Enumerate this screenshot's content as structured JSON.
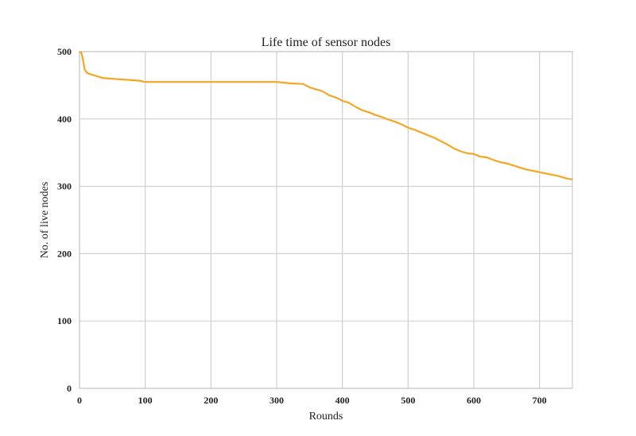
{
  "chart_data": {
    "type": "line",
    "title": "Life time of sensor nodes",
    "xlabel": "Rounds",
    "ylabel": "No. of live nodes",
    "xlim": [
      0,
      750
    ],
    "ylim": [
      0,
      500
    ],
    "xticks": [
      0,
      100,
      200,
      300,
      400,
      500,
      600,
      700
    ],
    "yticks": [
      0,
      100,
      200,
      300,
      400,
      500
    ],
    "grid": true,
    "line_color": "#f5a623",
    "series": [
      {
        "x": [
          0,
          3,
          5,
          8,
          12,
          18,
          25,
          35,
          45,
          60,
          75,
          90,
          100,
          150,
          200,
          250,
          300,
          310,
          320,
          340,
          350,
          370,
          380,
          390,
          400,
          410,
          420,
          430,
          440,
          450,
          460,
          470,
          480,
          490,
          500,
          510,
          520,
          530,
          540,
          550,
          560,
          570,
          580,
          590,
          600,
          610,
          620,
          630,
          640,
          650,
          660,
          670,
          680,
          690,
          700,
          710,
          720,
          730,
          740,
          750
        ],
        "values": [
          500,
          498,
          490,
          473,
          468,
          466,
          464,
          461,
          460,
          459,
          458,
          457,
          455,
          455,
          455,
          455,
          455,
          454,
          453,
          452,
          447,
          441,
          435,
          432,
          427,
          424,
          418,
          413,
          410,
          406,
          403,
          399,
          396,
          392,
          387,
          384,
          380,
          376,
          372,
          367,
          362,
          356,
          352,
          349,
          348,
          344,
          343,
          339,
          336,
          334,
          331,
          328,
          325,
          323,
          321,
          319,
          317,
          315,
          312,
          310
        ]
      }
    ]
  }
}
